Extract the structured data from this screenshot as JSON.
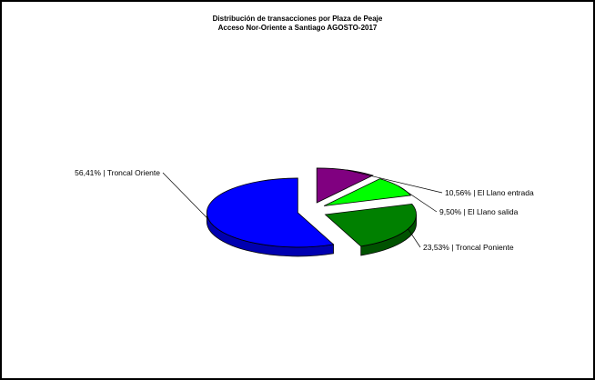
{
  "chart_data": {
    "type": "pie",
    "title": "Distribución de transacciones por Plaza de Peaje",
    "subtitle": "Acceso Nor-Oriente a Santiago AGOSTO-2017",
    "slices": [
      {
        "label": "56,41% | Troncal Oriente",
        "value": 56.41,
        "color": "#0000ff",
        "side": "#0000b0"
      },
      {
        "label": "10,56% | El Llano entrada",
        "value": 10.56,
        "color": "#800080",
        "side": "#560056"
      },
      {
        "label": "9,50% | El Llano salida",
        "value": 9.5,
        "color": "#00ff00",
        "side": "#00b400"
      },
      {
        "label": "23,53% | Troncal Poniente",
        "value": 23.53,
        "color": "#008000",
        "side": "#005200"
      }
    ]
  }
}
